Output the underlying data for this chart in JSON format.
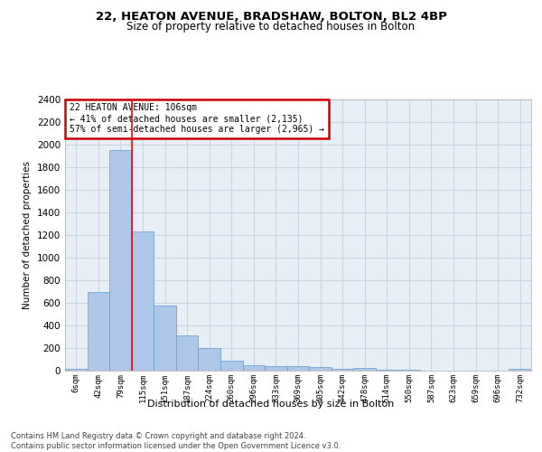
{
  "title": "22, HEATON AVENUE, BRADSHAW, BOLTON, BL2 4BP",
  "subtitle": "Size of property relative to detached houses in Bolton",
  "xlabel": "Distribution of detached houses by size in Bolton",
  "ylabel": "Number of detached properties",
  "bar_labels": [
    "6sqm",
    "42sqm",
    "79sqm",
    "115sqm",
    "151sqm",
    "187sqm",
    "224sqm",
    "260sqm",
    "296sqm",
    "333sqm",
    "369sqm",
    "405sqm",
    "442sqm",
    "478sqm",
    "514sqm",
    "550sqm",
    "587sqm",
    "623sqm",
    "659sqm",
    "696sqm",
    "732sqm"
  ],
  "bar_values": [
    15,
    700,
    1950,
    1230,
    580,
    310,
    200,
    85,
    50,
    38,
    38,
    30,
    15,
    25,
    10,
    5,
    2,
    1,
    1,
    1,
    20
  ],
  "bar_color": "#aec6e8",
  "bar_edge_color": "#5b9bd5",
  "red_line_x": 2.5,
  "property_label": "22 HEATON AVENUE: 106sqm",
  "annotation_line1": "← 41% of detached houses are smaller (2,135)",
  "annotation_line2": "57% of semi-detached houses are larger (2,965) →",
  "annotation_box_color": "#ffffff",
  "annotation_box_edge_color": "#cc0000",
  "ylim": [
    0,
    2400
  ],
  "yticks": [
    0,
    200,
    400,
    600,
    800,
    1000,
    1200,
    1400,
    1600,
    1800,
    2000,
    2200,
    2400
  ],
  "grid_color": "#c8d4e3",
  "background_color": "#e8eef6",
  "footer_line1": "Contains HM Land Registry data © Crown copyright and database right 2024.",
  "footer_line2": "Contains public sector information licensed under the Open Government Licence v3.0."
}
